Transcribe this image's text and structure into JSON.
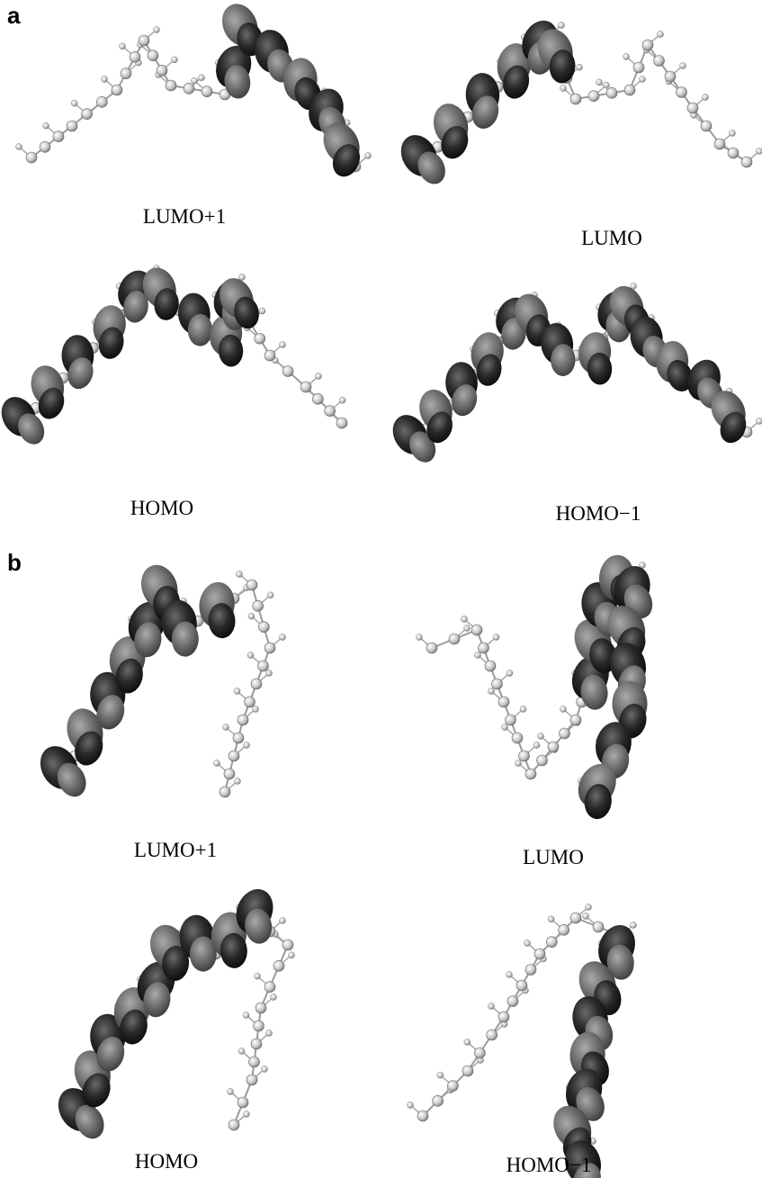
{
  "panels": [
    {
      "label": "a",
      "orbitals": [
        {
          "label": "LUMO+1"
        },
        {
          "label": "LUMO"
        },
        {
          "label": "HOMO"
        },
        {
          "label": "HOMO−1"
        }
      ]
    },
    {
      "label": "b",
      "orbitals": [
        {
          "label": "LUMO+1"
        },
        {
          "label": "LUMO"
        },
        {
          "label": "HOMO"
        },
        {
          "label": "HOMO−1"
        }
      ]
    }
  ]
}
